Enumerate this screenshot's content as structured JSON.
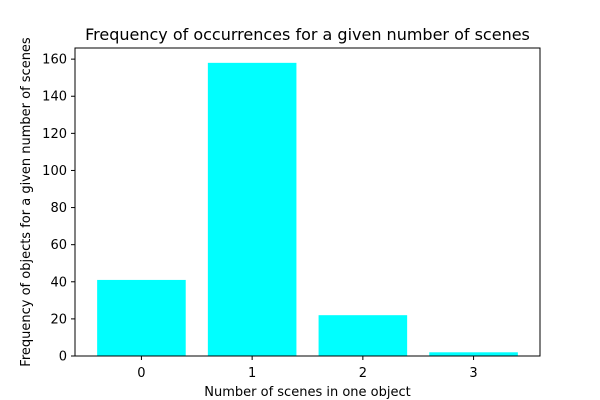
{
  "chart_data": {
    "type": "bar",
    "title": "Frequency of occurrences for a given number of scenes",
    "xlabel": "Number of scenes in one object",
    "ylabel": "Frequency of objects for a given number of scenes",
    "categories": [
      "0",
      "1",
      "2",
      "3"
    ],
    "values": [
      41,
      158,
      22,
      2
    ],
    "ylim": [
      0,
      166
    ],
    "yticks": [
      0,
      20,
      40,
      60,
      80,
      100,
      120,
      140,
      160
    ],
    "bar_color": "#00ffff",
    "grid": false,
    "legend": "none"
  }
}
